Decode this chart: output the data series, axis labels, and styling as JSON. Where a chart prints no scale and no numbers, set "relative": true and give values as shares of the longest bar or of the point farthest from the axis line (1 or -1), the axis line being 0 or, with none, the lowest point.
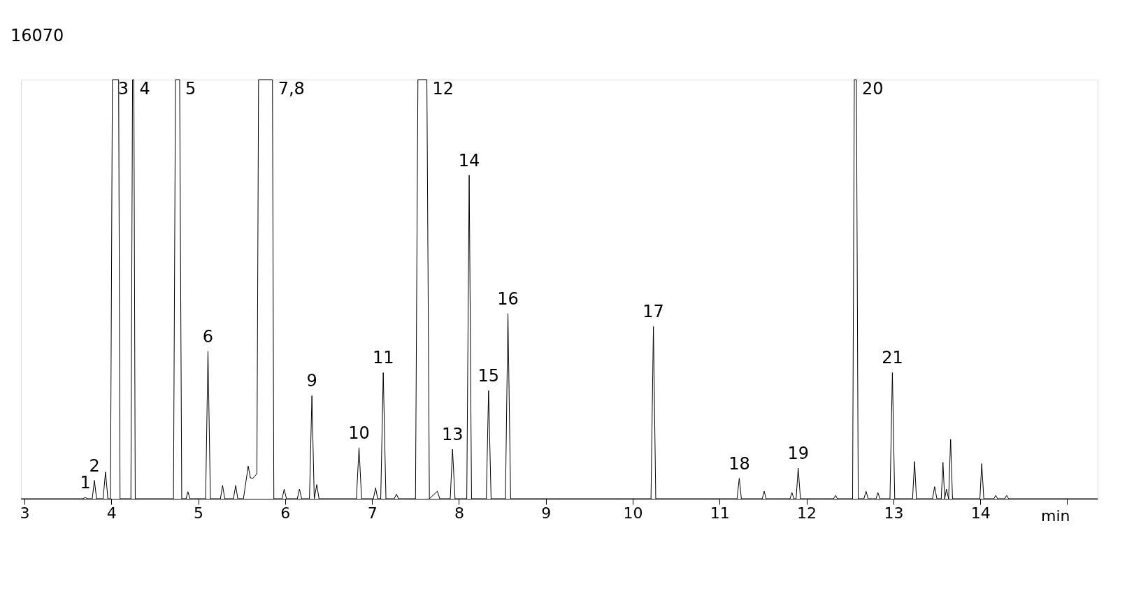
{
  "chart_data": {
    "type": "line",
    "relative": true,
    "xlabel": "min",
    "xlim": [
      2.96,
      15.35
    ],
    "xticks": [
      3,
      4,
      5,
      6,
      7,
      8,
      9,
      10,
      11,
      12,
      13,
      14,
      {
        "value": 15,
        "label": null
      }
    ],
    "grid": false,
    "marker": "none",
    "line_style": "solid",
    "annotations": [
      "16070",
      {
        "text": "1",
        "x": 3.701,
        "y": 0.003
      },
      {
        "text": "2",
        "x": 3.805,
        "y": 0.044
      },
      {
        "text": "3",
        "x": 4.012,
        "y": 1
      },
      {
        "text": "4",
        "x": 4.259,
        "y": 1
      },
      {
        "text": "5",
        "x": 4.786,
        "y": 1
      },
      {
        "text": "6",
        "x": 5.112,
        "y": 0.352
      },
      {
        "text": "7,8",
        "x": 5.854,
        "y": 1
      },
      {
        "text": "9",
        "x": 6.308,
        "y": 0.246
      },
      {
        "text": "10",
        "x": 6.85,
        "y": 0.122
      },
      {
        "text": "11",
        "x": 7.129,
        "y": 0.301
      },
      {
        "text": "12",
        "x": 7.631,
        "y": 1
      },
      {
        "text": "13",
        "x": 7.926,
        "y": 0.118
      },
      {
        "text": "14",
        "x": 8.118,
        "y": 0.772
      },
      {
        "text": "15",
        "x": 8.341,
        "y": 0.258
      },
      {
        "text": "16",
        "x": 8.564,
        "y": 0.442
      },
      {
        "text": "17",
        "x": 10.238,
        "y": 0.411
      },
      {
        "text": "18",
        "x": 11.226,
        "y": 0.049
      },
      {
        "text": "19",
        "x": 11.904,
        "y": 0.073
      },
      {
        "text": "20",
        "x": 12.574,
        "y": 1
      },
      {
        "text": "21",
        "x": 12.988,
        "y": 0.301
      }
    ],
    "series": [
      {
        "color": "#000000",
        "x": [
          2.96,
          3.67,
          3.701,
          3.73,
          3.78,
          3.805,
          3.83,
          3.905,
          3.933,
          3.96,
          3.99,
          4.012,
          4.084,
          4.1,
          4.225,
          4.244,
          4.259,
          4.275,
          4.715,
          4.738,
          4.786,
          4.81,
          4.86,
          4.881,
          4.905,
          5.085,
          5.112,
          5.14,
          5.255,
          5.28,
          5.305,
          5.405,
          5.431,
          5.455,
          5.52,
          5.575,
          5.6,
          5.631,
          5.675,
          5.694,
          5.854,
          5.87,
          5.965,
          5.989,
          6.015,
          6.14,
          6.165,
          6.19,
          6.28,
          6.308,
          6.335,
          6.364,
          6.39,
          6.82,
          6.85,
          6.88,
          7.015,
          7.041,
          7.065,
          7.1,
          7.129,
          7.16,
          7.255,
          7.281,
          7.305,
          7.5,
          7.528,
          7.631,
          7.66,
          7.751,
          7.78,
          7.9,
          7.926,
          7.955,
          8.09,
          8.118,
          8.145,
          8.315,
          8.341,
          8.37,
          8.535,
          8.564,
          8.595,
          10.21,
          10.238,
          10.265,
          11.2,
          11.226,
          11.25,
          11.49,
          11.513,
          11.535,
          11.81,
          11.832,
          11.855,
          11.88,
          11.904,
          11.93,
          12.31,
          12.334,
          12.355,
          12.53,
          12.55,
          12.574,
          12.595,
          12.66,
          12.685,
          12.71,
          12.8,
          12.821,
          12.845,
          12.96,
          12.988,
          13.015,
          13.22,
          13.243,
          13.265,
          13.45,
          13.474,
          13.5,
          13.55,
          13.57,
          13.59,
          13.61,
          13.635,
          13.658,
          13.68,
          13.995,
          14.016,
          14.04,
          14.155,
          14.176,
          14.2,
          14.28,
          14.303,
          14.325,
          15.35
        ],
        "values": [
          0,
          0,
          0.003,
          0,
          0,
          0.044,
          0,
          0,
          0.064,
          0,
          0,
          1,
          1,
          0,
          0,
          1,
          1,
          0,
          0,
          1,
          1,
          0,
          0,
          0.017,
          0,
          0,
          0.352,
          0,
          0,
          0.032,
          0,
          0,
          0.032,
          0,
          0,
          0.078,
          0.05,
          0.049,
          0.06,
          1,
          1,
          0,
          0,
          0.023,
          0,
          0,
          0.023,
          0,
          0,
          0.246,
          0,
          0.034,
          0,
          0,
          0.122,
          0,
          0,
          0.026,
          0,
          0,
          0.301,
          0,
          0,
          0.011,
          0,
          0,
          1,
          1,
          0,
          0.018,
          0,
          0,
          0.118,
          0,
          0,
          0.772,
          0,
          0,
          0.258,
          0,
          0,
          0.442,
          0,
          0,
          0.411,
          0,
          0,
          0.049,
          0,
          0,
          0.018,
          0,
          0,
          0.015,
          0,
          0,
          0.073,
          0,
          0,
          0.008,
          0,
          0,
          1,
          1,
          0,
          0,
          0.018,
          0,
          0,
          0.015,
          0,
          0,
          0.301,
          0,
          0,
          0.089,
          0,
          0,
          0.029,
          0,
          0,
          0.087,
          0,
          0.023,
          0,
          0.142,
          0,
          0,
          0.084,
          0,
          0,
          0.008,
          0,
          0,
          0.008,
          0,
          0
        ]
      }
    ]
  }
}
